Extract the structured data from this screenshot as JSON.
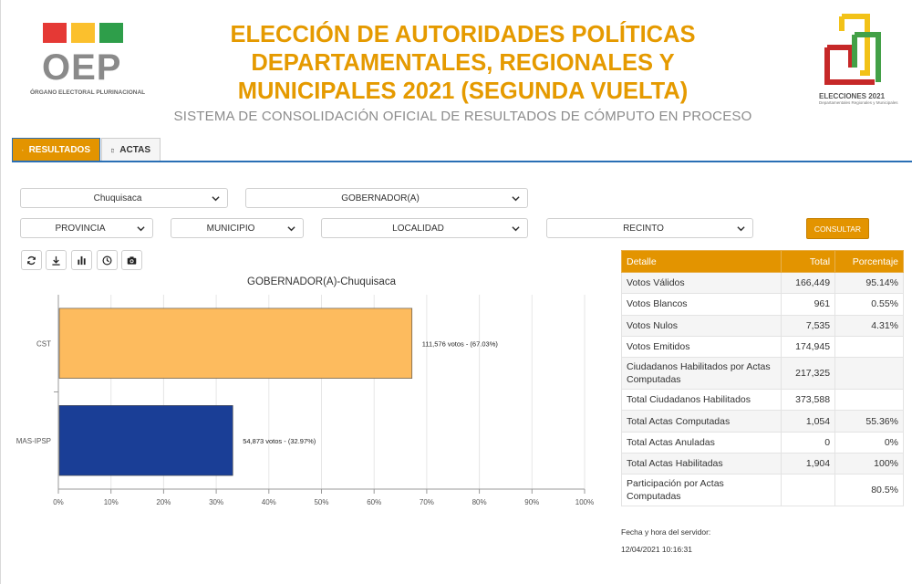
{
  "header": {
    "oep_word": "OEP",
    "oep_subtitle": "ÓRGANO ELECTORAL PLURINACIONAL",
    "title_lines": [
      "ELECCIÓN DE AUTORIDADES POLÍTICAS",
      "DEPARTAMENTALES, REGIONALES Y",
      "MUNICIPALES 2021 (SEGUNDA VUELTA)"
    ],
    "subtitle": "SISTEMA DE CONSOLIDACIÓN OFICIAL DE RESULTADOS DE CÓMPUTO EN PROCESO",
    "elecciones_logo_text": "ELECCIONES 2021",
    "elecciones_logo_subtext": "Departamentales Regionales y Municipales",
    "brand_colors": {
      "red": "#e53935",
      "yellow": "#fbc02d",
      "green": "#2e9e4a",
      "accent": "#e39400"
    }
  },
  "tabs": [
    {
      "label": "RESULTADOS",
      "icon": "bar-chart-icon",
      "active": true
    },
    {
      "label": "ACTAS",
      "icon": "document-icon",
      "active": false
    }
  ],
  "filters": {
    "departamento": "Chuquisaca",
    "cargo": "GOBERNADOR(A)",
    "provincia": "PROVINCIA",
    "municipio": "MUNICIPIO",
    "localidad": "LOCALIDAD",
    "recinto": "RECINTO",
    "consultar_label": "CONSULTAR"
  },
  "toolbar": [
    {
      "name": "refresh-icon"
    },
    {
      "name": "download-icon"
    },
    {
      "name": "bar-chart-icon"
    },
    {
      "name": "clock-icon"
    },
    {
      "name": "camera-icon"
    }
  ],
  "chart_data": {
    "type": "bar",
    "orientation": "horizontal",
    "title": "GOBERNADOR(A)-Chuquisaca",
    "categories": [
      "CST",
      "MAS-IPSP"
    ],
    "values": [
      67.03,
      32.97
    ],
    "votes": [
      111576,
      54873
    ],
    "data_labels": [
      "111,576 votos - (67.03%)",
      "54,873 votos - (32.97%)"
    ],
    "colors": [
      "#fdbb5e",
      "#1a3e96"
    ],
    "xlim": [
      0,
      100
    ],
    "xticks": [
      "0%",
      "10%",
      "20%",
      "30%",
      "40%",
      "50%",
      "60%",
      "70%",
      "80%",
      "90%",
      "100%"
    ],
    "grid": true
  },
  "results_table": {
    "headers": [
      "Detalle",
      "Total",
      "Porcentaje"
    ],
    "rows": [
      [
        "Votos Válidos",
        "166,449",
        "95.14%"
      ],
      [
        "Votos Blancos",
        "961",
        "0.55%"
      ],
      [
        "Votos Nulos",
        "7,535",
        "4.31%"
      ],
      [
        "Votos Emitidos",
        "174,945",
        ""
      ],
      [
        "Ciudadanos Habilitados por Actas Computadas",
        "217,325",
        ""
      ],
      [
        "Total Ciudadanos Habilitados",
        "373,588",
        ""
      ],
      [
        "Total Actas Computadas",
        "1,054",
        "55.36%"
      ],
      [
        "Total Actas Anuladas",
        "0",
        "0%"
      ],
      [
        "Total Actas Habilitadas",
        "1,904",
        "100%"
      ],
      [
        "Participación por Actas Computadas",
        "",
        "80.5%"
      ]
    ]
  },
  "server": {
    "label": "Fecha y hora del servidor:",
    "datetime": "12/04/2021 10:16:31"
  }
}
